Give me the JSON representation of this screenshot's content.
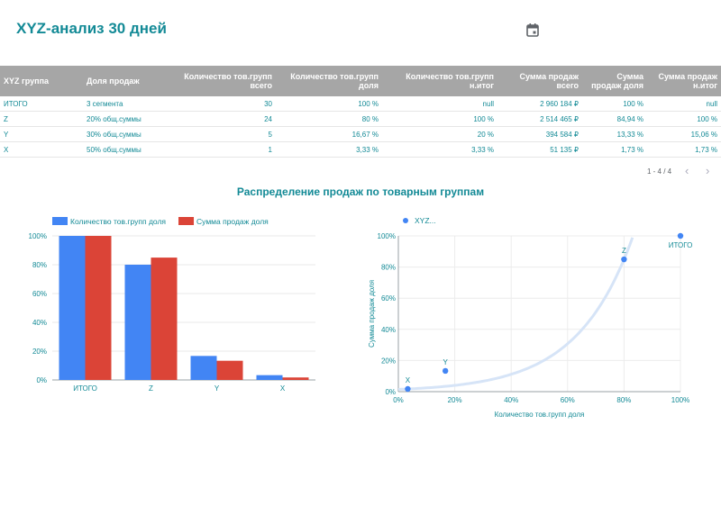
{
  "page": {
    "title": "XYZ-анализ 30 дней",
    "calendar_icon": "calendar-icon"
  },
  "table": {
    "headers": [
      "XYZ группа",
      "Доля продаж",
      "Количество тов.групп всего",
      "Количество тов.групп доля",
      "Количество тов.групп н.итог",
      "Сумма продаж всего",
      "Сумма продаж доля",
      "Сумма продаж н.итог"
    ],
    "rows": [
      [
        "ИТОГО",
        "3 сегмента",
        "30",
        "100 %",
        "null",
        "2 960 184 ₽",
        "100 %",
        "null"
      ],
      [
        "Z",
        "20% общ.суммы",
        "24",
        "80 %",
        "100 %",
        "2 514 465 ₽",
        "84,94 %",
        "100 %"
      ],
      [
        "Y",
        "30% общ.суммы",
        "5",
        "16,67 %",
        "20 %",
        "394 584 ₽",
        "13,33 %",
        "15,06 %"
      ],
      [
        "X",
        "50% общ.суммы",
        "1",
        "3,33 %",
        "3,33 %",
        "51 135 ₽",
        "1,73 %",
        "1,73 %"
      ]
    ],
    "pagination": "1 - 4 / 4"
  },
  "section_title": "Распределение продаж по товарным группам",
  "chart_data": [
    {
      "type": "bar",
      "categories": [
        "ИТОГО",
        "Z",
        "Y",
        "X"
      ],
      "series": [
        {
          "name": "Количество тов.групп доля",
          "color": "#4285f4",
          "values": [
            100,
            80,
            16.67,
            3.33
          ]
        },
        {
          "name": "Сумма продаж доля",
          "color": "#db4437",
          "values": [
            100,
            84.94,
            13.33,
            1.73
          ]
        }
      ],
      "ylim": [
        0,
        100
      ],
      "yticks": [
        "0%",
        "20%",
        "40%",
        "60%",
        "80%",
        "100%"
      ],
      "legend": "top-left",
      "grid": true
    },
    {
      "type": "scatter",
      "legend_label": "XYZ...",
      "color": "#4285f4",
      "points": [
        {
          "label": "X",
          "x": 3.33,
          "y": 1.73
        },
        {
          "label": "Y",
          "x": 16.67,
          "y": 13.33
        },
        {
          "label": "Z",
          "x": 80,
          "y": 84.94
        },
        {
          "label": "ИТОГО",
          "x": 100,
          "y": 100
        }
      ],
      "xlabel": "Количество тов.групп доля",
      "ylabel": "Сумма продаж доля",
      "xlim": [
        0,
        100
      ],
      "ylim": [
        0,
        100
      ],
      "xticks": [
        "0%",
        "20%",
        "40%",
        "60%",
        "80%",
        "100%"
      ],
      "yticks": [
        "0%",
        "20%",
        "40%",
        "60%",
        "80%",
        "100%"
      ],
      "trendline": true,
      "trend_color": "#d6e4f7",
      "grid": true
    }
  ]
}
